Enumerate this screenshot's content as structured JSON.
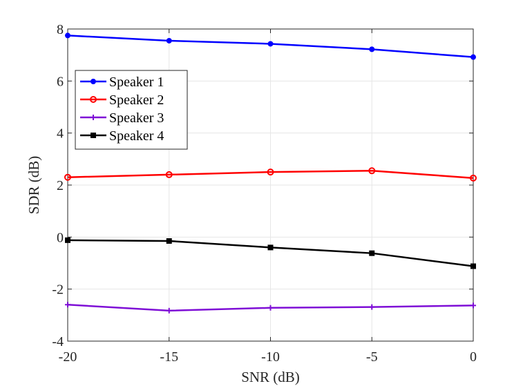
{
  "chart_data": {
    "type": "line",
    "title": "",
    "xlabel": "SNR (dB)",
    "ylabel": "SDR (dB)",
    "x": [
      -20,
      -15,
      -10,
      -5,
      0
    ],
    "xlim": [
      -20,
      0
    ],
    "ylim": [
      -4,
      8
    ],
    "xticks": [
      -20,
      -15,
      -10,
      -5,
      0
    ],
    "xtick_labels": [
      "-20",
      "-15",
      "-10",
      "-5",
      "0"
    ],
    "yticks": [
      -4,
      -2,
      0,
      2,
      4,
      6,
      8
    ],
    "ytick_labels": [
      "-4",
      "-2",
      "0",
      "2",
      "4",
      "6",
      "8"
    ],
    "grid": true,
    "legend_position": "upper-left",
    "series": [
      {
        "name": "Speaker 1",
        "color": "#0000ff",
        "marker": "filled-circle",
        "values": [
          7.75,
          7.55,
          7.43,
          7.22,
          6.92
        ]
      },
      {
        "name": "Speaker 2",
        "color": "#ff0000",
        "marker": "open-circle",
        "values": [
          2.3,
          2.4,
          2.5,
          2.55,
          2.27
        ]
      },
      {
        "name": "Speaker 3",
        "color": "#7e0ed6",
        "marker": "plus",
        "values": [
          -2.6,
          -2.83,
          -2.72,
          -2.69,
          -2.63
        ]
      },
      {
        "name": "Speaker 4",
        "color": "#000000",
        "marker": "filled-square",
        "values": [
          -0.12,
          -0.15,
          -0.4,
          -0.62,
          -1.12
        ]
      }
    ]
  }
}
